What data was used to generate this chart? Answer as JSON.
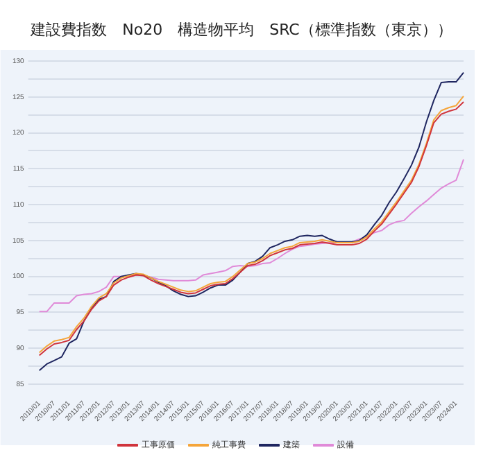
{
  "chart_data": {
    "type": "line",
    "title": "建設費指数　No20　構造物平均　SRC（標準指数（東京））",
    "categories": [
      "2010/01",
      null,
      "2010/07",
      null,
      "2011/01",
      null,
      "2011/07",
      null,
      "2012/01",
      null,
      "2012/07",
      null,
      "2013/01",
      null,
      "2013/07",
      null,
      "2014/01",
      null,
      "2014/07",
      null,
      "2015/01",
      null,
      "2015/07",
      null,
      "2016/01",
      null,
      "2016/07",
      null,
      "2017/01",
      null,
      "2017/07",
      null,
      "2018/01",
      null,
      "2018/07",
      null,
      "2019/01",
      null,
      "2019/07",
      null,
      "2020/01",
      null,
      "2020/07",
      null,
      "2021/01",
      null,
      "2021/07",
      null,
      "2022/01",
      null,
      "2022/07",
      null,
      "2023/01",
      null,
      "2023/07",
      null,
      "2024/01",
      null
    ],
    "series": [
      {
        "name": "工事原価",
        "color": "#d0343c",
        "values": [
          89.0,
          89.9,
          90.6,
          90.8,
          91.1,
          92.6,
          93.8,
          95.4,
          96.6,
          97.2,
          98.8,
          99.5,
          99.9,
          100.2,
          100.1,
          99.5,
          99.0,
          98.6,
          98.2,
          97.8,
          97.6,
          97.7,
          98.2,
          98.7,
          98.9,
          99.0,
          99.7,
          100.6,
          101.5,
          101.7,
          102.2,
          102.9,
          103.3,
          103.7,
          103.9,
          104.4,
          104.5,
          104.6,
          104.8,
          104.6,
          104.4,
          104.4,
          104.4,
          104.6,
          105.2,
          106.3,
          107.3,
          108.7,
          110.1,
          111.6,
          113.1,
          115.3,
          118.2,
          121.4,
          122.6,
          123.0,
          123.3,
          124.3
        ]
      },
      {
        "name": "純工事費",
        "color": "#f5a53a",
        "values": [
          89.4,
          90.3,
          91.0,
          91.2,
          91.5,
          93.0,
          94.2,
          95.8,
          97.0,
          97.6,
          99.1,
          99.8,
          100.1,
          100.4,
          100.3,
          99.8,
          99.3,
          98.9,
          98.5,
          98.1,
          97.9,
          98.0,
          98.5,
          99.0,
          99.2,
          99.3,
          100.0,
          100.9,
          101.8,
          102.0,
          102.5,
          103.2,
          103.6,
          104.0,
          104.2,
          104.7,
          104.8,
          104.9,
          105.1,
          104.9,
          104.7,
          104.7,
          104.7,
          104.9,
          105.5,
          106.6,
          107.6,
          109.0,
          110.4,
          111.9,
          113.4,
          115.6,
          118.5,
          121.8,
          123.1,
          123.5,
          123.8,
          125.1
        ]
      },
      {
        "name": "建築",
        "color": "#1f2660",
        "values": [
          86.9,
          87.8,
          88.3,
          88.8,
          90.7,
          91.3,
          93.8,
          95.5,
          96.8,
          97.2,
          99.3,
          100.0,
          100.2,
          100.4,
          100.2,
          99.8,
          99.2,
          98.7,
          98.0,
          97.5,
          97.2,
          97.3,
          97.8,
          98.4,
          98.8,
          98.8,
          99.5,
          100.6,
          101.8,
          102.1,
          102.8,
          104.0,
          104.4,
          104.9,
          105.1,
          105.6,
          105.7,
          105.6,
          105.7,
          105.2,
          104.8,
          104.8,
          104.8,
          105.0,
          105.8,
          107.2,
          108.5,
          110.3,
          111.8,
          113.6,
          115.5,
          118.0,
          121.5,
          124.5,
          127.0,
          127.1,
          127.1,
          128.4
        ]
      },
      {
        "name": "設備",
        "color": "#e08ad8",
        "values": [
          95.1,
          95.1,
          96.3,
          96.3,
          96.3,
          97.3,
          97.5,
          97.6,
          97.9,
          98.5,
          100.0,
          100.0,
          100.0,
          100.2,
          100.1,
          99.9,
          99.6,
          99.5,
          99.4,
          99.4,
          99.4,
          99.5,
          100.2,
          100.4,
          100.6,
          100.8,
          101.4,
          101.5,
          101.4,
          101.5,
          101.8,
          101.9,
          102.5,
          103.2,
          103.8,
          104.2,
          104.3,
          104.5,
          104.6,
          104.7,
          104.7,
          104.8,
          104.8,
          105.2,
          105.6,
          106.1,
          106.4,
          107.2,
          107.6,
          107.8,
          108.8,
          109.7,
          110.5,
          111.4,
          112.3,
          112.9,
          113.4,
          116.3
        ]
      }
    ],
    "ylim": [
      85,
      130
    ],
    "yticks": [
      85,
      {
        "value": 87.5,
        "label": null
      },
      90,
      {
        "value": 92.5,
        "label": null
      },
      95,
      {
        "value": 97.5,
        "label": null
      },
      100,
      {
        "value": 102.5,
        "label": null
      },
      105,
      {
        "value": 107.5,
        "label": null
      },
      110,
      {
        "value": 112.5,
        "label": null
      },
      115,
      {
        "value": 117.5,
        "label": null
      },
      120,
      {
        "value": 122.5,
        "label": null
      },
      125,
      {
        "value": 127.5,
        "label": null
      },
      130
    ],
    "grid": "y",
    "legend": "bottom",
    "marker": "none",
    "line_style": "solid"
  }
}
